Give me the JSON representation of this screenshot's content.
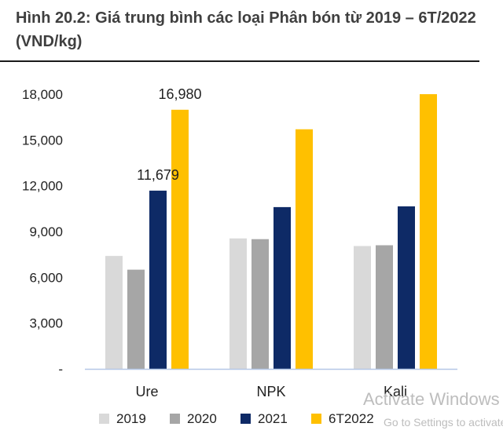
{
  "title": "Hình 20.2: Giá trung bình các loại Phân bón từ 2019 – 6T/2022 (VND/kg)",
  "watermark": {
    "line1": "Activate Windows",
    "line2": "Go to Settings to activate"
  },
  "chart_data": {
    "type": "bar",
    "categories": [
      "Ure",
      "NPK",
      "Kali"
    ],
    "series": [
      {
        "name": "2019",
        "color": "#d9d9d9",
        "values": [
          7400,
          8550,
          8050
        ]
      },
      {
        "name": "2020",
        "color": "#a6a6a6",
        "values": [
          6500,
          8500,
          8100
        ]
      },
      {
        "name": "2021",
        "color": "#0e2a66",
        "values": [
          11679,
          10600,
          10650
        ]
      },
      {
        "name": "6T2022",
        "color": "#ffc000",
        "values": [
          16980,
          15700,
          18000
        ]
      }
    ],
    "data_labels": [
      {
        "series": 2,
        "category": 0,
        "text": "11,679"
      },
      {
        "series": 3,
        "category": 0,
        "text": "16,980"
      }
    ],
    "y_ticks": [
      {
        "value": 0,
        "label": "-"
      },
      {
        "value": 3000,
        "label": "3,000"
      },
      {
        "value": 6000,
        "label": "6,000"
      },
      {
        "value": 9000,
        "label": "9,000"
      },
      {
        "value": 12000,
        "label": "12,000"
      },
      {
        "value": 15000,
        "label": "15,000"
      },
      {
        "value": 18000,
        "label": "18,000"
      }
    ],
    "ylim": [
      0,
      18000
    ],
    "grid": false,
    "legend_position": "bottom"
  }
}
